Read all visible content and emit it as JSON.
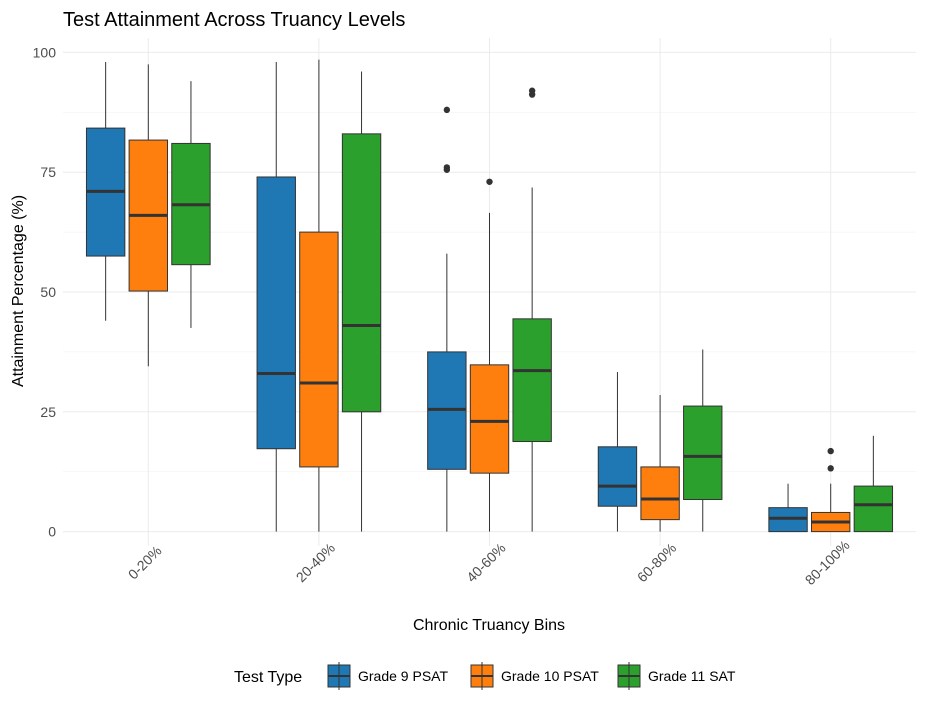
{
  "chart_data": {
    "type": "boxplot",
    "title": "Test Attainment Across Truancy Levels",
    "xlabel": "Chronic Truancy Bins",
    "ylabel": "Attainment Percentage (%)",
    "ylim": [
      -3,
      103
    ],
    "yticks": [
      0,
      25,
      50,
      75,
      100
    ],
    "categories": [
      "0-20%",
      "20-40%",
      "40-60%",
      "60-80%",
      "80-100%"
    ],
    "grid": true,
    "legend": {
      "title": "Test Type",
      "position": "bottom"
    },
    "series": [
      {
        "name": "Grade 9 PSAT",
        "color": "#1f77b4",
        "boxes": [
          {
            "min": 44,
            "q1": 57.5,
            "median": 71,
            "q3": 84.2,
            "max": 98,
            "outliers": []
          },
          {
            "min": 0,
            "q1": 17.3,
            "median": 33,
            "q3": 74,
            "max": 98,
            "outliers": []
          },
          {
            "min": 0,
            "q1": 13,
            "median": 25.5,
            "q3": 37.5,
            "max": 58,
            "outliers": [
              75.5,
              76,
              88
            ]
          },
          {
            "min": 0,
            "q1": 5.3,
            "median": 9.5,
            "q3": 17.7,
            "max": 33.3,
            "outliers": []
          },
          {
            "min": 0,
            "q1": 0,
            "median": 2.8,
            "q3": 5,
            "max": 10,
            "outliers": []
          }
        ]
      },
      {
        "name": "Grade 10 PSAT",
        "color": "#ff7f0e",
        "boxes": [
          {
            "min": 34.5,
            "q1": 50.2,
            "median": 66,
            "q3": 81.7,
            "max": 97.5,
            "outliers": []
          },
          {
            "min": 0,
            "q1": 13.5,
            "median": 31,
            "q3": 62.5,
            "max": 98.5,
            "outliers": []
          },
          {
            "min": 0,
            "q1": 12.2,
            "median": 23,
            "q3": 34.8,
            "max": 66.5,
            "outliers": [
              73
            ]
          },
          {
            "min": 0,
            "q1": 2.5,
            "median": 6.8,
            "q3": 13.5,
            "max": 28.5,
            "outliers": []
          },
          {
            "min": 0,
            "q1": 0,
            "median": 2,
            "q3": 4,
            "max": 10,
            "outliers": [
              13.2,
              16.8
            ]
          }
        ]
      },
      {
        "name": "Grade 11 SAT",
        "color": "#2ca02c",
        "boxes": [
          {
            "min": 42.5,
            "q1": 55.7,
            "median": 68.2,
            "q3": 81,
            "max": 94,
            "outliers": []
          },
          {
            "min": 0,
            "q1": 25,
            "median": 43,
            "q3": 83,
            "max": 96,
            "outliers": []
          },
          {
            "min": 0,
            "q1": 18.8,
            "median": 33.6,
            "q3": 44.4,
            "max": 71.8,
            "outliers": [
              91.2,
              92
            ]
          },
          {
            "min": 0,
            "q1": 6.7,
            "median": 15.7,
            "q3": 26.2,
            "max": 38,
            "outliers": []
          },
          {
            "min": 0,
            "q1": 0,
            "median": 5.6,
            "q3": 9.5,
            "max": 20,
            "outliers": []
          }
        ]
      }
    ]
  }
}
